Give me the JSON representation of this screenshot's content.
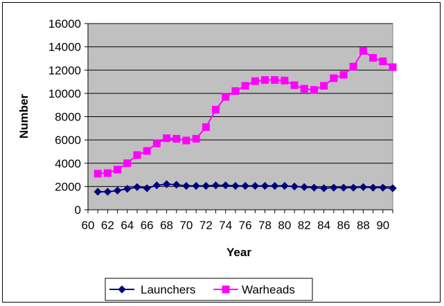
{
  "chart_data": {
    "type": "line",
    "xlabel": "Year",
    "ylabel": "Number",
    "x": [
      61,
      62,
      63,
      64,
      65,
      66,
      67,
      68,
      69,
      70,
      71,
      72,
      73,
      74,
      75,
      76,
      77,
      78,
      79,
      80,
      81,
      82,
      83,
      84,
      85,
      86,
      87,
      88,
      89,
      90,
      91
    ],
    "xlim": [
      60,
      91
    ],
    "x_ticks": [
      "60",
      "62",
      "64",
      "66",
      "68",
      "70",
      "72",
      "74",
      "76",
      "78",
      "80",
      "82",
      "84",
      "86",
      "88",
      "90"
    ],
    "ylim": [
      0,
      16000
    ],
    "y_ticks": [
      "0",
      "2000",
      "4000",
      "6000",
      "8000",
      "10000",
      "12000",
      "14000",
      "16000"
    ],
    "grid": "horizontal",
    "plot_background": "#c0c0c0",
    "legend_position": "bottom",
    "series": [
      {
        "name": "Launchers",
        "color": "#000080",
        "marker": "diamond",
        "values": [
          1550,
          1550,
          1650,
          1800,
          1950,
          1850,
          2100,
          2200,
          2150,
          2050,
          2050,
          2050,
          2100,
          2100,
          2050,
          2050,
          2050,
          2050,
          2050,
          2050,
          2000,
          1950,
          1900,
          1850,
          1900,
          1900,
          1900,
          1950,
          1900,
          1900,
          1850
        ]
      },
      {
        "name": "Warheads",
        "color": "#ff00ff",
        "marker": "square",
        "values": [
          3100,
          3150,
          3450,
          4000,
          4700,
          5050,
          5700,
          6150,
          6100,
          5950,
          6100,
          7100,
          8600,
          9700,
          10200,
          10650,
          11050,
          11150,
          11150,
          11100,
          10700,
          10400,
          10300,
          10650,
          11300,
          11600,
          12300,
          13650,
          13050,
          12750,
          12250
        ]
      }
    ]
  }
}
